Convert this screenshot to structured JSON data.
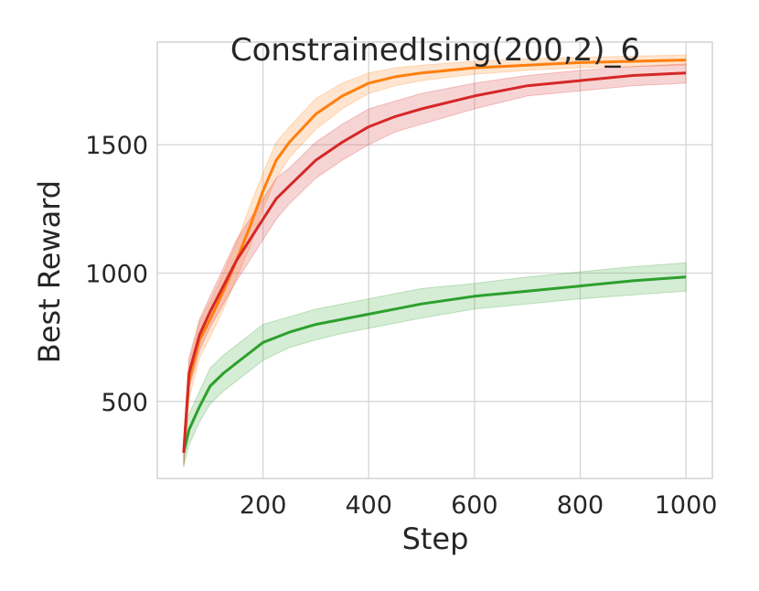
{
  "chart_data": {
    "type": "line",
    "title": "ConstrainedIsing(200,2)_6",
    "xlabel": "Step",
    "ylabel": "Best Reward",
    "xlim": [
      0,
      1050
    ],
    "ylim": [
      200,
      1900
    ],
    "xticks": [
      200,
      400,
      600,
      800,
      1000
    ],
    "yticks": [
      500,
      1000,
      1500
    ],
    "grid": true,
    "legend": "none",
    "series": [
      {
        "color": "#ff7f0e",
        "x": [
          50,
          60,
          80,
          100,
          125,
          150,
          175,
          200,
          225,
          250,
          300,
          350,
          400,
          450,
          500,
          600,
          700,
          800,
          900,
          1000
        ],
        "y": [
          300,
          580,
          740,
          820,
          930,
          1050,
          1180,
          1320,
          1440,
          1510,
          1620,
          1690,
          1740,
          1765,
          1780,
          1800,
          1810,
          1820,
          1825,
          1830
        ],
        "lower": [
          240,
          510,
          670,
          750,
          860,
          980,
          1100,
          1250,
          1370,
          1450,
          1560,
          1640,
          1700,
          1730,
          1750,
          1775,
          1790,
          1800,
          1805,
          1810
        ],
        "upper": [
          360,
          650,
          810,
          890,
          1000,
          1120,
          1260,
          1390,
          1510,
          1570,
          1680,
          1740,
          1780,
          1800,
          1810,
          1825,
          1835,
          1840,
          1845,
          1850
        ]
      },
      {
        "color": "#d62728",
        "x": [
          50,
          60,
          80,
          100,
          125,
          150,
          175,
          200,
          225,
          250,
          300,
          350,
          400,
          450,
          500,
          600,
          700,
          800,
          900,
          1000
        ],
        "y": [
          300,
          610,
          760,
          850,
          950,
          1050,
          1130,
          1210,
          1290,
          1340,
          1440,
          1510,
          1570,
          1610,
          1640,
          1690,
          1730,
          1750,
          1770,
          1780
        ],
        "lower": [
          250,
          550,
          700,
          790,
          880,
          970,
          1050,
          1130,
          1210,
          1270,
          1370,
          1440,
          1500,
          1550,
          1580,
          1640,
          1690,
          1710,
          1730,
          1740
        ],
        "upper": [
          350,
          670,
          820,
          910,
          1020,
          1130,
          1210,
          1290,
          1370,
          1410,
          1510,
          1580,
          1640,
          1670,
          1700,
          1740,
          1770,
          1790,
          1805,
          1815
        ]
      },
      {
        "color": "#2ca02c",
        "x": [
          50,
          60,
          80,
          100,
          125,
          150,
          175,
          200,
          250,
          300,
          350,
          400,
          450,
          500,
          600,
          700,
          800,
          900,
          1000
        ],
        "y": [
          300,
          390,
          480,
          560,
          610,
          650,
          690,
          730,
          770,
          800,
          820,
          840,
          860,
          880,
          910,
          930,
          950,
          970,
          985
        ],
        "lower": [
          250,
          330,
          420,
          490,
          540,
          580,
          620,
          660,
          710,
          740,
          765,
          785,
          805,
          825,
          860,
          880,
          900,
          915,
          930
        ],
        "upper": [
          350,
          450,
          540,
          630,
          680,
          720,
          760,
          800,
          830,
          860,
          880,
          900,
          920,
          940,
          960,
          985,
          1005,
          1025,
          1040
        ]
      }
    ]
  }
}
